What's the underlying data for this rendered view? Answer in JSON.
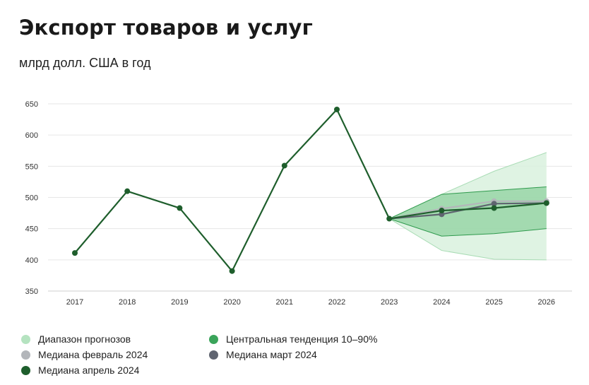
{
  "title": "Экспорт товаров и услуг",
  "subtitle": "млрд долл. США в год",
  "legend": [
    {
      "label": "Диапазон прогнозов",
      "color": "#b5e3c0"
    },
    {
      "label": "Центральная тенденция 10–90%",
      "color": "#3aa45a"
    },
    {
      "label": "Медиана февраль 2024",
      "color": "#b3b6ba"
    },
    {
      "label": "Медиана март 2024",
      "color": "#5f6470"
    },
    {
      "label": "Медиана апрель 2024",
      "color": "#1e5e2c"
    }
  ],
  "chart_data": {
    "type": "line",
    "title": "Экспорт товаров и услуг",
    "subtitle": "млрд долл. США в год",
    "x": [
      "2017",
      "2018",
      "2019",
      "2020",
      "2021",
      "2022",
      "2023",
      "2024",
      "2025",
      "2026"
    ],
    "ylim": [
      350,
      650
    ],
    "yticks": [
      350,
      400,
      450,
      500,
      550,
      600,
      650
    ],
    "grid": true,
    "legend_position": "bottom",
    "history": {
      "x": [
        "2017",
        "2018",
        "2019",
        "2020",
        "2021",
        "2022",
        "2023"
      ],
      "values": [
        411,
        510,
        483,
        382,
        551,
        641,
        466
      ]
    },
    "forecast_range": {
      "name": "Диапазон прогнозов",
      "x": [
        "2023",
        "2024",
        "2025",
        "2026"
      ],
      "low": [
        466,
        415,
        401,
        400
      ],
      "high": [
        466,
        505,
        542,
        572
      ]
    },
    "central_tendency": {
      "name": "Центральная тенденция 10–90%",
      "x": [
        "2023",
        "2024",
        "2025",
        "2026"
      ],
      "low": [
        466,
        438,
        442,
        450
      ],
      "high": [
        466,
        505,
        511,
        517
      ]
    },
    "series": [
      {
        "name": "Медиана февраль 2024",
        "x": [
          "2023",
          "2024",
          "2025",
          "2026"
        ],
        "values": [
          466,
          482,
          494,
          494
        ]
      },
      {
        "name": "Медиана март 2024",
        "x": [
          "2023",
          "2024",
          "2025",
          "2026"
        ],
        "values": [
          466,
          473,
          490,
          491
        ]
      },
      {
        "name": "Медиана апрель 2024",
        "x": [
          "2023",
          "2024",
          "2025",
          "2026"
        ],
        "values": [
          466,
          479,
          483,
          491
        ]
      }
    ]
  }
}
